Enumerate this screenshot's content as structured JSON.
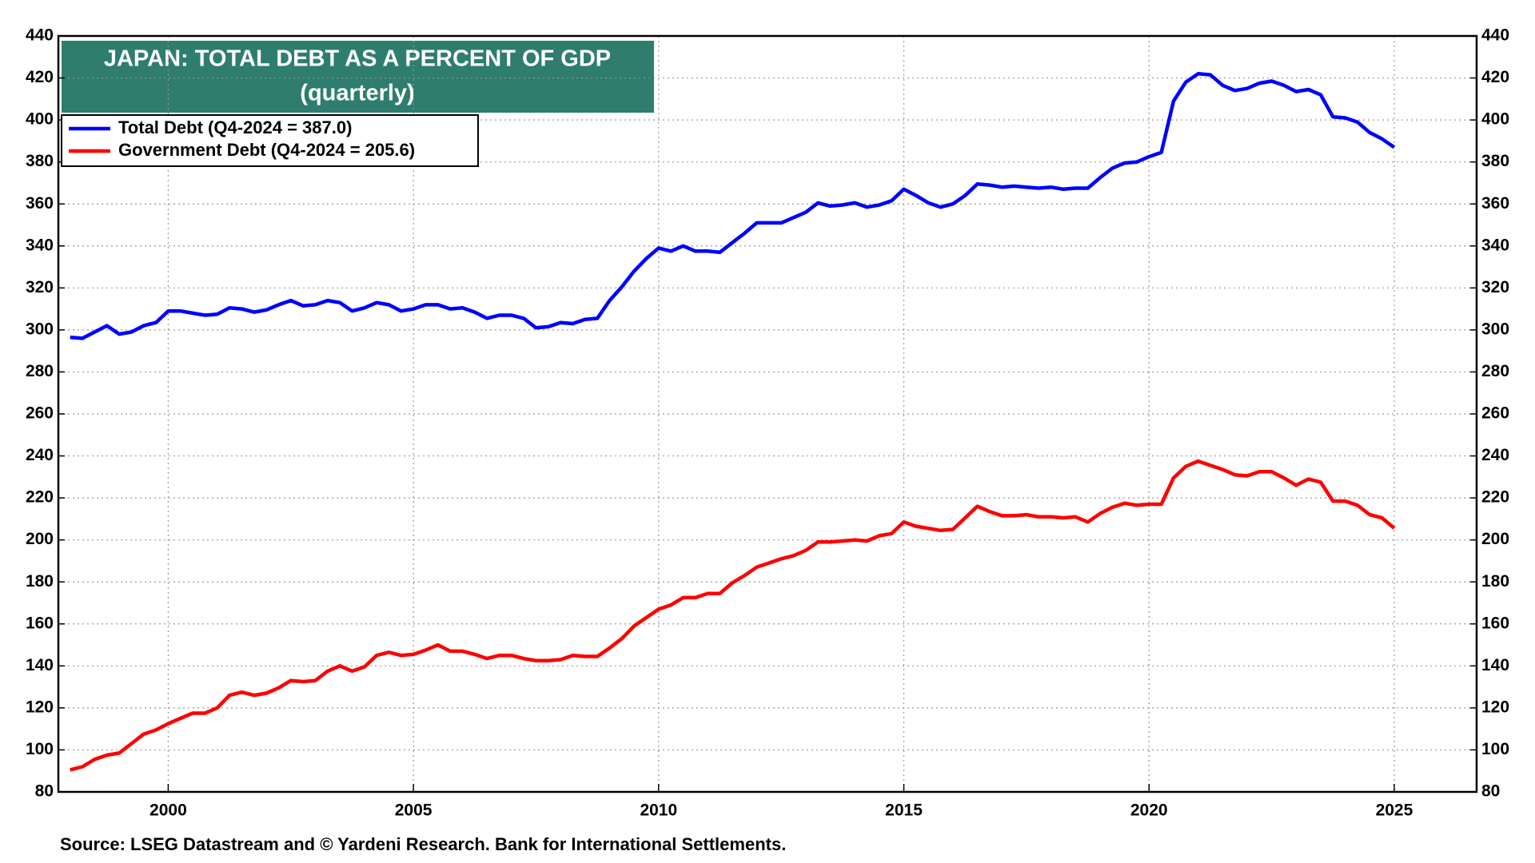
{
  "chart_data": {
    "type": "line",
    "title": "JAPAN: TOTAL DEBT AS A PERCENT OF GDP",
    "subtitle": "(quarterly)",
    "source": "Source: LSEG Datastream and © Yardeni Research. Bank for International Settlements.",
    "x": [
      1998,
      1998.25,
      1998.5,
      1998.75,
      1999,
      1999.25,
      1999.5,
      1999.75,
      2000,
      2000.25,
      2000.5,
      2000.75,
      2001,
      2001.25,
      2001.5,
      2001.75,
      2002,
      2002.25,
      2002.5,
      2002.75,
      2003,
      2003.25,
      2003.5,
      2003.75,
      2004,
      2004.25,
      2004.5,
      2004.75,
      2005,
      2005.25,
      2005.5,
      2005.75,
      2006,
      2006.25,
      2006.5,
      2006.75,
      2007,
      2007.25,
      2007.5,
      2007.75,
      2008,
      2008.25,
      2008.5,
      2008.75,
      2009,
      2009.25,
      2009.5,
      2009.75,
      2010,
      2010.25,
      2010.5,
      2010.75,
      2011,
      2011.25,
      2011.5,
      2011.75,
      2012,
      2012.25,
      2012.5,
      2012.75,
      2013,
      2013.25,
      2013.5,
      2013.75,
      2014,
      2014.25,
      2014.5,
      2014.75,
      2015,
      2015.25,
      2015.5,
      2015.75,
      2016,
      2016.25,
      2016.5,
      2016.75,
      2017,
      2017.25,
      2017.5,
      2017.75,
      2018,
      2018.25,
      2018.5,
      2018.75,
      2019,
      2019.25,
      2019.5,
      2019.75,
      2020,
      2020.25,
      2020.5,
      2020.75,
      2021,
      2021.25,
      2021.5,
      2021.75,
      2022,
      2022.25,
      2022.5,
      2022.75,
      2023,
      2023.25,
      2023.5,
      2023.75,
      2024,
      2024.25,
      2024.5,
      2024.75,
      2025
    ],
    "series": [
      {
        "name": "Total Debt (Q4-2024 = 387.0)",
        "color": "#0000ff",
        "values": [
          296.5,
          296,
          299,
          302,
          298,
          299,
          302,
          303.5,
          309,
          309,
          308,
          307,
          307.5,
          310.5,
          310,
          308.5,
          309.5,
          312,
          314,
          311.5,
          312,
          314,
          313,
          309,
          310.5,
          313,
          312,
          309,
          310,
          312,
          312,
          310,
          310.5,
          308.5,
          305.5,
          307,
          307,
          305.5,
          301,
          301.5,
          303.5,
          303,
          305,
          305.5,
          314,
          320.5,
          328,
          334,
          339,
          337.5,
          340,
          337.5,
          337.5,
          337,
          341.5,
          346,
          351,
          351,
          351,
          353.5,
          356,
          360.5,
          359,
          359.5,
          360.5,
          358.5,
          359.5,
          361.5,
          367,
          364,
          360.5,
          358.5,
          360,
          364,
          369.5,
          369,
          368,
          368.5,
          368,
          367.5,
          368,
          367,
          367.5,
          367.5,
          372.5,
          377,
          379.5,
          380,
          382.5,
          384.5,
          409,
          418,
          422,
          421.5,
          416.5,
          414,
          415,
          417.5,
          418.5,
          416.5,
          413.5,
          414.5,
          412,
          401.5,
          401,
          399,
          394,
          391,
          387
        ]
      },
      {
        "name": "Government Debt (Q4-2024 = 205.6)",
        "color": "#ff0000",
        "values": [
          90.5,
          92,
          95.5,
          97.5,
          98.5,
          103,
          107.5,
          109.5,
          112.5,
          115,
          117.5,
          117.5,
          120,
          126,
          127.5,
          126,
          127,
          129.5,
          133,
          132.5,
          133,
          137.5,
          140,
          137.5,
          139.5,
          145,
          146.5,
          145,
          145.5,
          147.5,
          150,
          147,
          147,
          145.5,
          143.5,
          145,
          145,
          143.5,
          142.5,
          142.5,
          143,
          145,
          144.5,
          144.5,
          148.5,
          153,
          159,
          163,
          167,
          169,
          172.5,
          172.5,
          174.5,
          174.5,
          179.5,
          183,
          187,
          189,
          191,
          192.5,
          195,
          199,
          199,
          199.5,
          200,
          199.5,
          202,
          203,
          208.5,
          206.5,
          205.5,
          204.5,
          205,
          210.5,
          216,
          213.5,
          211.5,
          211.5,
          212,
          211,
          211,
          210.5,
          211,
          208.5,
          212.5,
          215.5,
          217.5,
          216.5,
          217,
          217,
          229.5,
          235,
          237.5,
          235.5,
          233.5,
          231,
          230.5,
          232.5,
          232.5,
          229.5,
          226,
          229,
          227.5,
          218.5,
          218.5,
          216.5,
          212,
          210.5,
          205.6
        ]
      }
    ],
    "xlim": [
      1997.76,
      2026.68
    ],
    "xticks": [
      2000,
      2005,
      2010,
      2015,
      2020,
      2025
    ],
    "ylim": [
      80,
      440
    ],
    "yticks": [
      80,
      100,
      120,
      140,
      160,
      180,
      200,
      220,
      240,
      260,
      280,
      300,
      320,
      340,
      360,
      380,
      400,
      420,
      440
    ],
    "y2lim": [
      80,
      440
    ],
    "y2ticks": [
      80,
      100,
      120,
      140,
      160,
      180,
      200,
      220,
      240,
      260,
      280,
      300,
      320,
      340,
      360,
      380,
      400,
      420,
      440
    ],
    "grid": true,
    "legend": "upper left",
    "title_box_color": "#2e7d6e"
  }
}
